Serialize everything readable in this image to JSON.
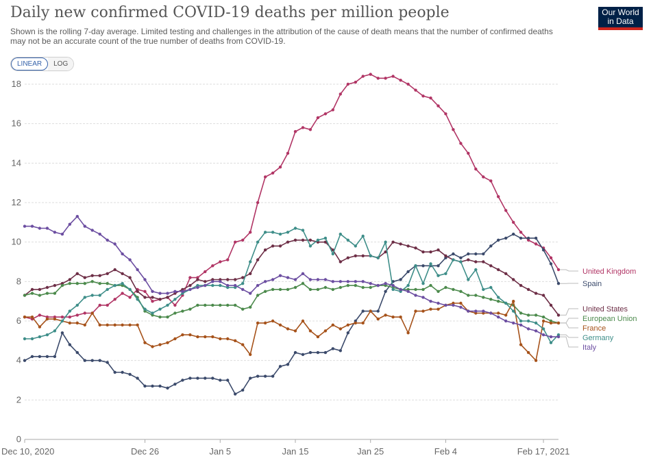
{
  "header": {
    "title": "Daily new confirmed COVID-19 deaths per million people",
    "subtitle": "Shown is the rolling 7-day average. Limited testing and challenges in the attribution of the cause of death means that the number of confirmed deaths may not be an accurate count of the true number of deaths from COVID-19.",
    "logo_line1": "Our World",
    "logo_line2": "in Data",
    "logo_color": "#002147",
    "logo_accent": "#ce261e"
  },
  "controls": {
    "linear_label": "LINEAR",
    "log_label": "LOG",
    "selected": "LINEAR"
  },
  "chart_data": {
    "type": "line",
    "title": "Daily new confirmed COVID-19 deaths per million people",
    "ylim": [
      0,
      18
    ],
    "y_ticks": [
      0,
      2,
      4,
      6,
      8,
      10,
      12,
      14,
      16,
      18
    ],
    "x_tick_labels": [
      "Dec 10, 2020",
      "Dec 26",
      "Jan 5",
      "Jan 15",
      "Jan 25",
      "Feb 4",
      "Feb 17, 2021"
    ],
    "x_tick_days": [
      0,
      16,
      26,
      36,
      46,
      56,
      69
    ],
    "x_start": "Dec 10, 2020",
    "x_end": "Feb 17, 2021",
    "grid": "horizontal dashed",
    "legend_placement": "right",
    "series": [
      {
        "name": "United Kingdom",
        "color": "#b13565",
        "values": [
          6.2,
          6.1,
          6.3,
          6.2,
          6.2,
          6.2,
          6.2,
          6.3,
          6.4,
          6.4,
          6.8,
          6.8,
          7.1,
          7.4,
          7.2,
          7.6,
          7.5,
          7.0,
          7.1,
          7.2,
          6.8,
          7.3,
          8.2,
          8.2,
          8.5,
          8.8,
          9.0,
          9.1,
          10.0,
          10.1,
          10.5,
          12.0,
          13.3,
          13.5,
          13.8,
          14.5,
          15.6,
          15.8,
          15.7,
          16.3,
          16.5,
          16.7,
          17.5,
          18.0,
          18.1,
          18.4,
          18.5,
          18.3,
          18.3,
          18.4,
          18.2,
          18.0,
          17.7,
          17.4,
          17.3,
          16.9,
          16.5,
          15.7,
          15.0,
          14.5,
          13.7,
          13.3,
          13.1,
          12.3,
          11.6,
          11.0,
          10.5,
          10.1,
          9.9,
          9.7,
          9.2,
          8.6
        ]
      },
      {
        "name": "Spain",
        "color": "#3b4a6b",
        "values": [
          4.0,
          4.2,
          4.2,
          4.2,
          4.2,
          5.4,
          4.8,
          4.4,
          4.0,
          4.0,
          4.0,
          3.9,
          3.4,
          3.4,
          3.3,
          3.1,
          2.7,
          2.7,
          2.7,
          2.6,
          2.8,
          3.0,
          3.1,
          3.1,
          3.1,
          3.1,
          3.0,
          3.0,
          2.3,
          2.5,
          3.1,
          3.2,
          3.2,
          3.2,
          3.7,
          3.8,
          4.4,
          4.3,
          4.4,
          4.4,
          4.4,
          4.6,
          4.5,
          5.4,
          6.0,
          6.5,
          6.5,
          6.5,
          7.5,
          8.0,
          8.1,
          8.5,
          8.8,
          8.8,
          8.8,
          8.8,
          9.2,
          9.4,
          9.2,
          9.4,
          9.4,
          9.4,
          9.8,
          10.1,
          10.2,
          10.4,
          10.2,
          10.2,
          10.2,
          9.6,
          8.9,
          7.9
        ]
      },
      {
        "name": "United States",
        "color": "#6d2e46",
        "values": [
          7.3,
          7.6,
          7.6,
          7.7,
          7.8,
          7.9,
          8.1,
          8.4,
          8.2,
          8.3,
          8.3,
          8.4,
          8.6,
          8.4,
          8.2,
          7.5,
          7.2,
          7.2,
          7.1,
          7.2,
          7.4,
          7.6,
          7.8,
          8.1,
          8.0,
          8.1,
          8.1,
          8.1,
          8.1,
          8.2,
          8.4,
          9.1,
          9.6,
          9.8,
          9.8,
          10.0,
          10.1,
          10.1,
          10.1,
          10.0,
          10.0,
          9.6,
          9.0,
          9.2,
          9.3,
          9.3,
          9.3,
          9.2,
          9.5,
          10.0,
          9.9,
          9.8,
          9.7,
          9.5,
          9.5,
          9.6,
          9.3,
          9.1,
          9.0,
          9.1,
          9.0,
          9.0,
          8.8,
          8.6,
          8.4,
          8.1,
          7.8,
          7.6,
          7.4,
          7.3,
          6.8,
          6.3
        ]
      },
      {
        "name": "European Union",
        "color": "#4c8a4c",
        "values": [
          7.3,
          7.4,
          7.3,
          7.4,
          7.4,
          7.8,
          7.9,
          7.9,
          7.9,
          8.0,
          7.9,
          7.9,
          7.8,
          7.8,
          7.6,
          7.2,
          6.5,
          6.3,
          6.2,
          6.2,
          6.4,
          6.5,
          6.6,
          6.8,
          6.8,
          6.8,
          6.8,
          6.8,
          6.8,
          6.6,
          6.7,
          7.3,
          7.5,
          7.6,
          7.6,
          7.6,
          7.7,
          7.9,
          7.6,
          7.6,
          7.7,
          7.6,
          7.7,
          7.8,
          7.8,
          7.7,
          7.7,
          7.8,
          7.8,
          7.7,
          7.6,
          7.6,
          7.6,
          7.6,
          7.8,
          7.5,
          7.7,
          7.6,
          7.5,
          7.3,
          7.3,
          7.2,
          7.1,
          7.0,
          6.9,
          6.8,
          6.4,
          6.3,
          6.3,
          6.2,
          6.0,
          5.9
        ]
      },
      {
        "name": "France",
        "color": "#a6521a",
        "values": [
          6.2,
          6.2,
          5.7,
          6.1,
          6.1,
          6.0,
          5.9,
          5.9,
          5.8,
          6.4,
          5.8,
          5.8,
          5.8,
          5.8,
          5.8,
          5.8,
          4.9,
          4.7,
          4.8,
          4.9,
          5.1,
          5.3,
          5.3,
          5.2,
          5.2,
          5.2,
          5.1,
          5.1,
          5.0,
          4.8,
          4.3,
          5.9,
          5.9,
          6.0,
          5.8,
          5.6,
          5.5,
          6.0,
          5.5,
          5.2,
          5.5,
          5.8,
          5.6,
          5.8,
          5.9,
          5.9,
          6.5,
          6.1,
          6.3,
          6.2,
          6.2,
          5.4,
          6.5,
          6.5,
          6.6,
          6.6,
          6.8,
          6.9,
          6.9,
          6.5,
          6.4,
          6.4,
          6.4,
          6.4,
          6.3,
          7.0,
          4.8,
          4.4,
          4.0,
          6.0,
          5.9,
          5.9
        ]
      },
      {
        "name": "Germany",
        "color": "#3e8e89",
        "values": [
          5.1,
          5.1,
          5.2,
          5.3,
          5.5,
          6.0,
          6.5,
          6.8,
          7.2,
          7.3,
          7.3,
          7.6,
          7.8,
          7.9,
          7.6,
          7.1,
          6.6,
          6.4,
          6.6,
          6.8,
          7.1,
          7.4,
          7.6,
          7.8,
          7.8,
          7.8,
          7.8,
          7.7,
          7.7,
          7.9,
          9.0,
          10.0,
          10.5,
          10.5,
          10.4,
          10.5,
          10.7,
          10.6,
          9.8,
          10.1,
          10.2,
          9.4,
          10.4,
          10.1,
          9.8,
          10.3,
          9.3,
          9.2,
          10.0,
          7.6,
          7.5,
          7.8,
          8.8,
          7.9,
          8.9,
          8.3,
          8.4,
          9.1,
          9.0,
          8.1,
          8.6,
          7.6,
          7.7,
          7.2,
          6.9,
          6.5,
          6.0,
          6.0,
          5.9,
          5.6,
          4.9,
          5.3
        ]
      },
      {
        "name": "Italy",
        "color": "#6c4ea1",
        "values": [
          10.8,
          10.8,
          10.7,
          10.7,
          10.5,
          10.4,
          10.9,
          11.3,
          10.8,
          10.6,
          10.4,
          10.1,
          9.9,
          9.4,
          9.1,
          8.6,
          8.1,
          7.5,
          7.4,
          7.4,
          7.5,
          7.5,
          7.6,
          7.7,
          7.8,
          8.0,
          8.0,
          7.8,
          7.8,
          7.6,
          7.4,
          7.8,
          8.0,
          8.1,
          8.3,
          8.2,
          8.1,
          8.4,
          8.1,
          8.1,
          8.1,
          8.0,
          8.0,
          8.0,
          8.0,
          8.0,
          7.9,
          7.8,
          7.9,
          7.8,
          7.6,
          7.5,
          7.3,
          7.2,
          7.0,
          6.9,
          6.8,
          6.8,
          6.7,
          6.5,
          6.5,
          6.5,
          6.4,
          6.2,
          6.0,
          5.9,
          5.8,
          5.6,
          5.5,
          5.3,
          5.2,
          5.2
        ]
      }
    ]
  }
}
